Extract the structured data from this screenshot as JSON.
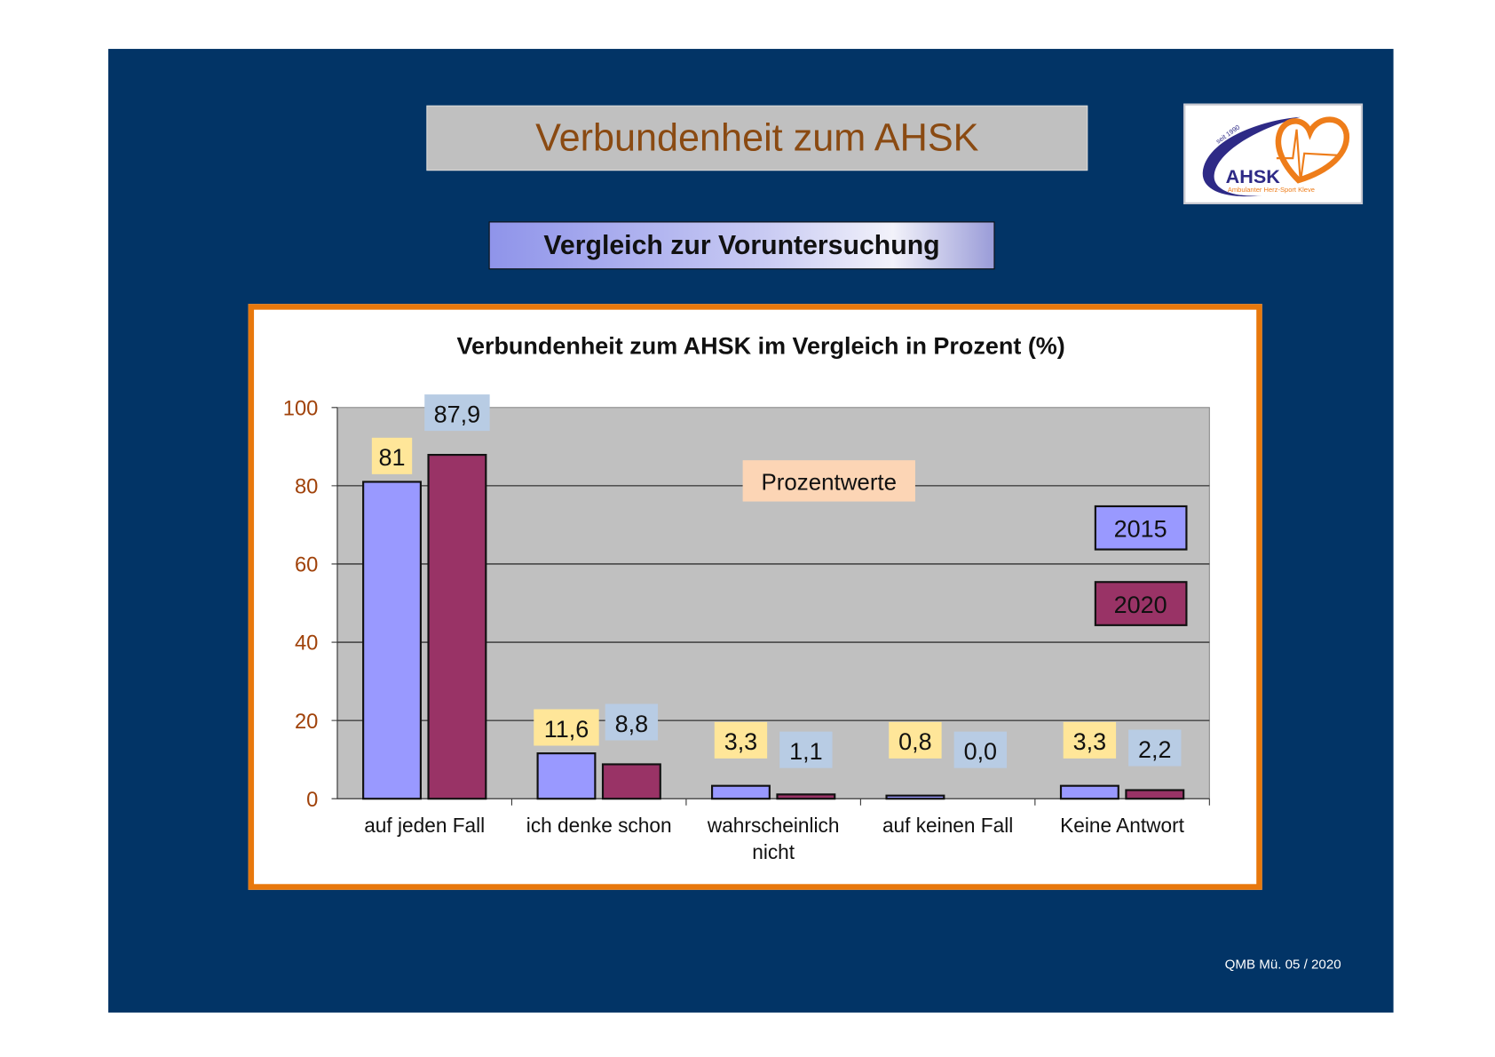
{
  "slide": {
    "title": "Verbundenheit zum AHSK",
    "subtitle": "Vergleich zur Voruntersuchung",
    "footer": "QMB Mü. 05 / 2020",
    "logo": {
      "text": "AHSK",
      "tagline": "Ambulanter Herz-Sport Kleve",
      "since": "seit 1990"
    }
  },
  "colors": {
    "background": "#023466",
    "series2015": "#9999ff",
    "series2020": "#993366",
    "label2015": "#ffe699",
    "label2020": "#b8cce4",
    "annotation": "#fcd5b5",
    "frame": "#e8780c"
  },
  "chart_data": {
    "type": "bar",
    "title": "Verbundenheit zum AHSK im Vergleich in Prozent (%)",
    "categories": [
      [
        "auf jeden Fall"
      ],
      [
        "ich denke schon"
      ],
      [
        "wahrscheinlich",
        "nicht"
      ],
      [
        "auf keinen Fall"
      ],
      [
        "Keine Antwort"
      ]
    ],
    "series": [
      {
        "name": "2015",
        "values": [
          81,
          11.6,
          3.3,
          0.8,
          3.3
        ],
        "labels": [
          "81",
          "11,6",
          "3,3",
          "0,8",
          "3,3"
        ]
      },
      {
        "name": "2020",
        "values": [
          87.9,
          8.8,
          1.1,
          0.0,
          2.2
        ],
        "labels": [
          "87,9",
          "8,8",
          "1,1",
          "0,0",
          "2,2"
        ]
      }
    ],
    "annotation": "Prozentwerte",
    "ylim": [
      0,
      100
    ],
    "yticks": [
      "0",
      "20",
      "40",
      "60",
      "80",
      "100"
    ],
    "grid": true,
    "legend": "right"
  }
}
